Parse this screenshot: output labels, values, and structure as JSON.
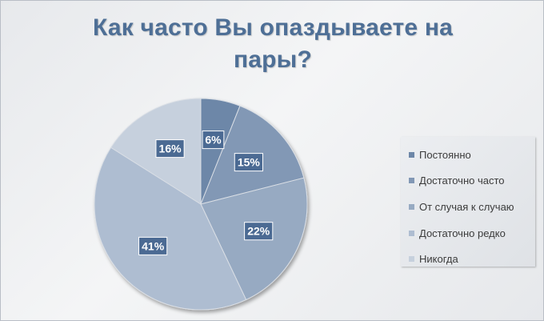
{
  "chart_data": {
    "type": "pie",
    "title": "Как часто Вы опаздываете на пары?",
    "title_lines": [
      "Как часто Вы опаздываете на",
      "пары?"
    ],
    "categories": [
      "Постоянно",
      "Достаточно часто",
      "От случая к случаю",
      "Достаточно редко",
      "Никогда"
    ],
    "values": [
      6,
      15,
      22,
      41,
      16
    ],
    "data_labels": [
      "6%",
      "15%",
      "22%",
      "41%",
      "16%"
    ],
    "colors": [
      "#6d87a8",
      "#8298b5",
      "#97aac2",
      "#aebdd1",
      "#c6d0dd"
    ],
    "legend": "right",
    "label_box_color": "#4b6a93"
  }
}
